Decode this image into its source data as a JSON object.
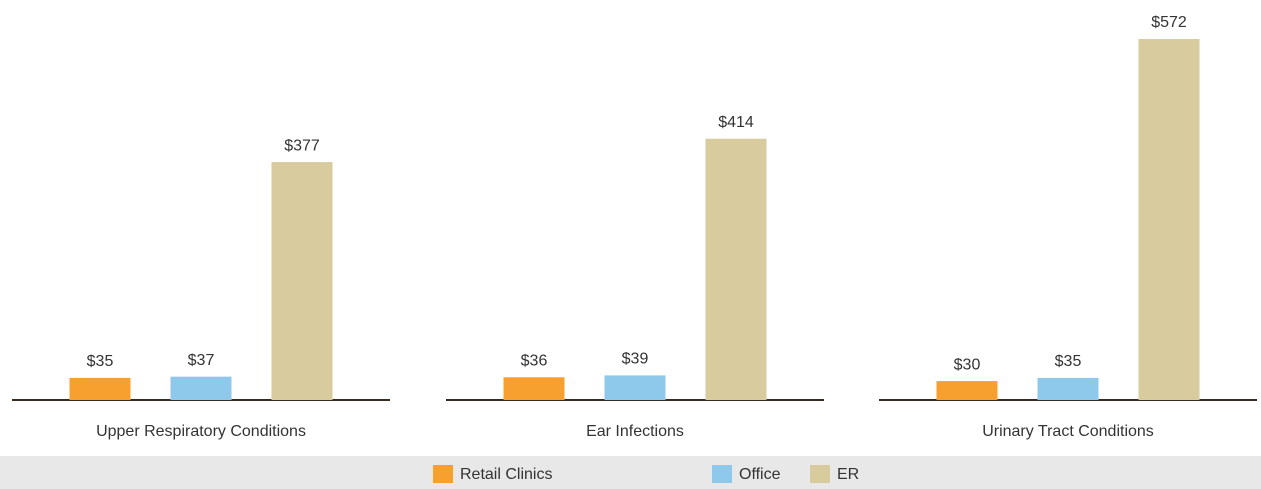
{
  "chart_data": {
    "type": "bar",
    "categories": [
      "Upper Respiratory Conditions",
      "Ear Infections",
      "Urinary Tract Conditions"
    ],
    "series": [
      {
        "name": "Retail Clinics",
        "color": "#f7a030",
        "values": [
          35,
          36,
          30
        ],
        "value_labels": [
          "$35",
          "$36",
          "$30"
        ]
      },
      {
        "name": "Office",
        "color": "#8ec8ea",
        "values": [
          37,
          39,
          35
        ],
        "value_labels": [
          "$37",
          "$39",
          "$35"
        ]
      },
      {
        "name": "ER",
        "color": "#d8cb9d",
        "values": [
          377,
          414,
          572
        ],
        "value_labels": [
          "$377",
          "$414",
          "$572"
        ]
      }
    ]
  }
}
